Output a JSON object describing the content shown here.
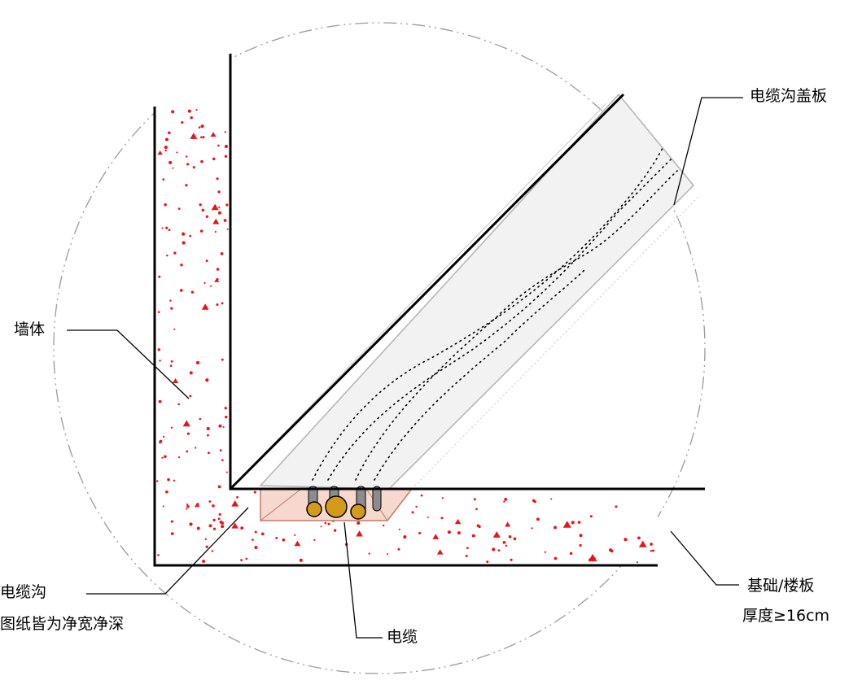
{
  "labels": {
    "wall": "墙体",
    "cover": "电缆沟盖板",
    "trench": "电缆沟",
    "trench_note": "图纸皆为净宽净深",
    "cable": "电缆",
    "foundation": "基础/楼板",
    "thickness": "厚度≥16cm"
  },
  "colors": {
    "concrete_dot": "#e8141a",
    "outline": "#000000",
    "cover_fill": "#f2f2f2",
    "cover_edge": "#b3b3b3",
    "trench_fill": "#f6d8cf",
    "trench_edge": "#c07a63",
    "cable_gold": "#d39a1c",
    "cable_sheath": "#8c8c8c",
    "guide_circle": "#9a9a9a"
  }
}
